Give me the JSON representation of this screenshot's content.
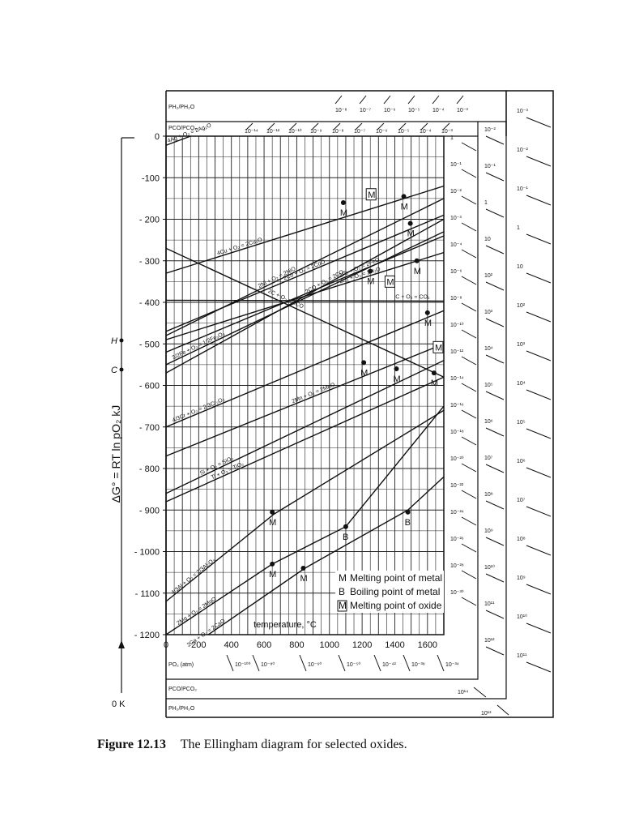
{
  "caption": {
    "figure": "Figure 12.13",
    "text": "The Ellingham diagram for selected oxides."
  },
  "chart_data": {
    "type": "line",
    "title": "",
    "xlabel": "temperature, °C",
    "ylabel": "ΔG° = RT ln pO₂ kJ",
    "xlim": [
      0,
      1700
    ],
    "ylim": [
      -1200,
      0
    ],
    "xticks": [
      "0",
      "200",
      "400",
      "600",
      "800",
      "1000",
      "1200",
      "1400",
      "1600"
    ],
    "yticks": [
      "0",
      "-100",
      "- 200",
      "- 300",
      "- 400",
      "- 500",
      "- 600",
      "- 700",
      "- 800",
      "- 900",
      "- 1000",
      "- 1100",
      "- 1200"
    ],
    "grid": true,
    "left_axis_labels": [
      "H",
      "C",
      "0 K"
    ],
    "top_scale_labels": [
      "PH₂/PH₂O",
      "PCO/PCO₂"
    ],
    "bottom_scale_labels": [
      "PO₂ (atm)",
      "PCO/PCO₂",
      "PH₂/PH₂O"
    ],
    "h2_top_ticks": [
      "10⁻⁸",
      "10⁻⁷",
      "10⁻⁶",
      "10⁻⁵",
      "10⁻⁴",
      "10⁻³"
    ],
    "co_top_ticks": [
      "10⁻¹⁴",
      "10⁻¹²",
      "10⁻¹⁰",
      "10⁻⁹",
      "10⁻⁸",
      "10⁻⁷",
      "10⁻⁶",
      "10⁻⁵",
      "10⁻⁴",
      "10⁻³"
    ],
    "po2_right_ticks": [
      "1",
      "10⁻¹",
      "10⁻²",
      "10⁻³",
      "10⁻⁴",
      "10⁻⁶",
      "10⁻⁸",
      "10⁻¹⁰",
      "10⁻¹²",
      "10⁻¹⁴",
      "10⁻¹⁶",
      "10⁻¹⁸",
      "10⁻²⁰",
      "10⁻²²",
      "10⁻²⁴",
      "10⁻²⁶",
      "10⁻²⁸",
      "10⁻³⁰"
    ],
    "co_right_ticks": [
      "10⁻²",
      "10⁻¹",
      "1",
      "10",
      "10²",
      "10³",
      "10⁴",
      "10⁵",
      "10⁶",
      "10⁷",
      "10⁸",
      "10⁹",
      "10¹⁰",
      "10¹¹",
      "10¹²"
    ],
    "h2_right_ticks": [
      "10⁻³",
      "10⁻²",
      "10⁻¹",
      "1",
      "10",
      "10²",
      "10³",
      "10⁴",
      "10⁵",
      "10⁶",
      "10⁷",
      "10⁸",
      "10⁹",
      "10¹⁰",
      "10¹¹"
    ],
    "po2_bottom_ticks": [
      "10⁻¹⁰⁰",
      "10⁻⁸⁰",
      "10⁻⁶⁰",
      "10⁻⁵⁰",
      "10⁻⁴²",
      "10⁻³⁸",
      "10⁻³⁴"
    ],
    "co_bottom_tick": "10¹⁴",
    "h2_bottom_tick": "10¹³",
    "series": [
      {
        "name": "4Ag + O₂ = 2Ag₂O",
        "x": [
          0,
          150
        ],
        "y": [
          -22,
          0
        ]
      },
      {
        "name": "4Cu + O₂ = 2Cu₂O",
        "x": [
          0,
          1700
        ],
        "y": [
          -330,
          -120
        ]
      },
      {
        "name": "2Ni + O₂ = 2NiO",
        "x": [
          0,
          1700
        ],
        "y": [
          -480,
          -150
        ]
      },
      {
        "name": "2Co + O₂ = 2CoO",
        "x": [
          0,
          1700
        ],
        "y": [
          -470,
          -190
        ]
      },
      {
        "name": "2Fe + O₂ = 2FeO",
        "x": [
          0,
          1700
        ],
        "y": [
          -520,
          -240
        ]
      },
      {
        "name": "2CO + O₂ = 2CO₂",
        "x": [
          0,
          1700
        ],
        "y": [
          -570,
          -200
        ]
      },
      {
        "name": "2H₂ + O₂ = 2H₂O",
        "x": [
          0,
          1700
        ],
        "y": [
          -490,
          -280
        ]
      },
      {
        "name": "3/2Fe + O₂ = 1/2Fe₃O₄",
        "x": [
          0,
          1700
        ],
        "y": [
          -550,
          -230
        ]
      },
      {
        "name": "C + O₂ = CO₂",
        "x": [
          0,
          1700
        ],
        "y": [
          -395,
          -397
        ]
      },
      {
        "name": "2C + O₂ = 2CO",
        "x": [
          0,
          1700
        ],
        "y": [
          -270,
          -580
        ]
      },
      {
        "name": "4/3Cr + O₂ = 2/3Cr₂O₃",
        "x": [
          0,
          1700
        ],
        "y": [
          -700,
          -420
        ]
      },
      {
        "name": "2Mn + O₂ = 2MnO",
        "x": [
          0,
          1700
        ],
        "y": [
          -770,
          -500
        ]
      },
      {
        "name": "Si + O₂ = SiO₂",
        "x": [
          0,
          1700
        ],
        "y": [
          -860,
          -540
        ]
      },
      {
        "name": "Ti + O₂ = TiO₂",
        "x": [
          0,
          1700
        ],
        "y": [
          -880,
          -580
        ]
      },
      {
        "name": "4/3Al + O₂ = 2/3Al₂O₃",
        "x": [
          0,
          660,
          1700
        ],
        "y": [
          -1120,
          -910,
          -660
        ]
      },
      {
        "name": "2Mg + O₂ = 2MgO",
        "x": [
          0,
          650,
          1100,
          1700
        ],
        "y": [
          -1200,
          -1030,
          -940,
          -650
        ]
      },
      {
        "name": "2Ca + O₂ = 2CaO",
        "x": [
          0,
          850,
          1480,
          1700
        ],
        "y": [
          -1270,
          -1040,
          -900,
          -820
        ]
      }
    ],
    "markers": [
      {
        "label": "M",
        "x": 1085,
        "y": -160
      },
      {
        "label": "M",
        "x": 1455,
        "y": -145
      },
      {
        "label": "M",
        "x": 1495,
        "y": -210
      },
      {
        "label": "M",
        "x": 1250,
        "y": -325
      },
      {
        "label": "M",
        "x": 1535,
        "y": -300
      },
      {
        "label": "M",
        "x": 1600,
        "y": -425
      },
      {
        "label": "M",
        "x": 1210,
        "y": -545
      },
      {
        "label": "M",
        "x": 1410,
        "y": -560
      },
      {
        "label": "M",
        "x": 1640,
        "y": -570
      },
      {
        "label": "M",
        "x": 650,
        "y": -905
      },
      {
        "label": "M",
        "x": 650,
        "y": -1030
      },
      {
        "label": "M",
        "x": 840,
        "y": -1040
      },
      {
        "label": "B",
        "x": 1100,
        "y": -940
      },
      {
        "label": "B",
        "x": 1480,
        "y": -905
      }
    ],
    "oxide_markers": [
      {
        "label": "M",
        "x": 1255,
        "y": -140
      },
      {
        "label": "M",
        "x": 1370,
        "y": -350
      },
      {
        "label": "M",
        "x": 1665,
        "y": -508
      }
    ],
    "legend": [
      {
        "symbol": "M",
        "text": "Melting point of metal"
      },
      {
        "symbol": "B",
        "text": "Boiling point of metal"
      },
      {
        "symbol": "[M]",
        "text": "Melting point of oxide"
      }
    ],
    "legend_placement": "bottom-right"
  }
}
